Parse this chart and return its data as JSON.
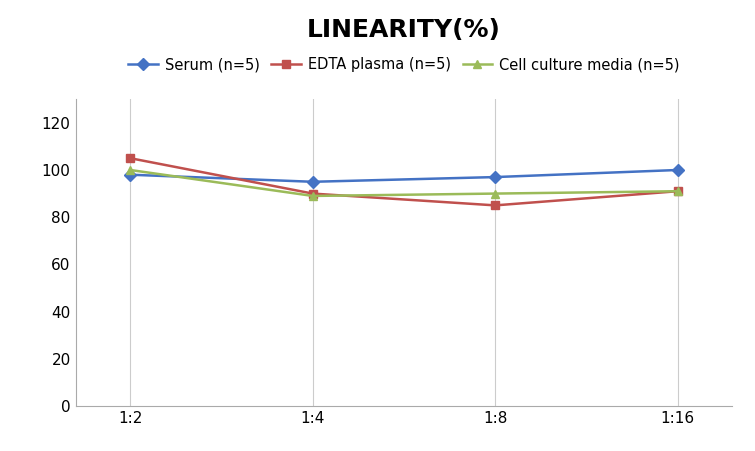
{
  "title": "LINEARITY(%)",
  "x_labels": [
    "1:2",
    "1:4",
    "1:8",
    "1:16"
  ],
  "x_values": [
    0,
    1,
    2,
    3
  ],
  "series": [
    {
      "label": "Serum (n=5)",
      "values": [
        98,
        95,
        97,
        100
      ],
      "color": "#4472C4",
      "marker": "D",
      "linewidth": 1.8,
      "markersize": 6
    },
    {
      "label": "EDTA plasma (n=5)",
      "values": [
        105,
        90,
        85,
        91
      ],
      "color": "#C0504D",
      "marker": "s",
      "linewidth": 1.8,
      "markersize": 6
    },
    {
      "label": "Cell culture media (n=5)",
      "values": [
        100,
        89,
        90,
        91
      ],
      "color": "#9BBB59",
      "marker": "^",
      "linewidth": 1.8,
      "markersize": 6
    }
  ],
  "ylim": [
    0,
    130
  ],
  "yticks": [
    0,
    20,
    40,
    60,
    80,
    100,
    120
  ],
  "background_color": "#ffffff",
  "title_fontsize": 18,
  "legend_fontsize": 10.5,
  "tick_fontsize": 11,
  "grid_color": "#CCCCCC",
  "spine_color": "#AAAAAA"
}
